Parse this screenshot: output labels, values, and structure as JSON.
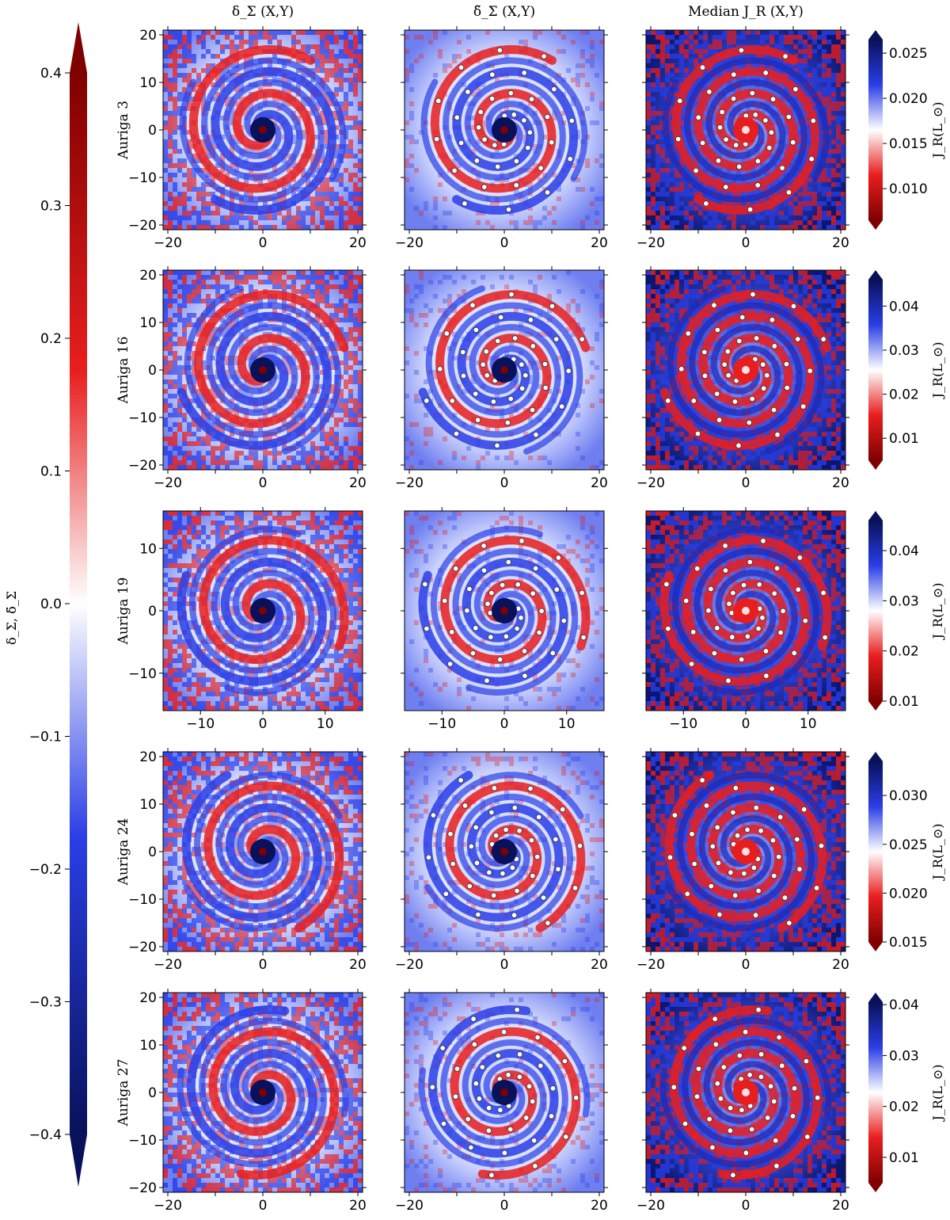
{
  "figure": {
    "column_titles": [
      "δ_Σ (X,Y)",
      "δ̃_Σ (X,Y)",
      "Median J_R (X,Y)"
    ],
    "colormap": {
      "low": "#08115a",
      "mid": "#ffffff",
      "high": "#800000",
      "blue": "#2a3ee6",
      "red": "#e81e1e"
    },
    "main_colorbar": {
      "label": "δ_Σ, δ̃_Σ",
      "min": -0.4,
      "max": 0.4,
      "ticks": [
        "0.4",
        "0.3",
        "0.2",
        "0.1",
        "0.0",
        "−0.1",
        "−0.2",
        "−0.3",
        "−0.4"
      ],
      "extend": "both"
    },
    "jr_colorbar_label": "J_R(L_⊙)"
  },
  "chart_data": [
    {
      "type": "heatmap",
      "row": "Auriga 3",
      "panels": [
        {
          "title": "δ_Σ (X,Y)",
          "xlim": [
            -21,
            21
          ],
          "ylim": [
            -21,
            21
          ],
          "xticks": [
            "−20",
            "0",
            "20"
          ],
          "yticks": [
            "−20",
            "−10",
            "0",
            "10",
            "20"
          ],
          "arms": 2,
          "cmin": -0.4,
          "cmax": 0.4
        },
        {
          "title": "δ̃_Σ (X,Y)",
          "xlim": [
            -21,
            21
          ],
          "ylim": [
            -21,
            21
          ],
          "xticks": [
            "−20",
            "0",
            "20"
          ],
          "yticks": [],
          "arms": 2,
          "cmin": -0.4,
          "cmax": 0.4,
          "markers": "open circles along spiral arms"
        },
        {
          "title": "Median J_R (X,Y)",
          "xlim": [
            -21,
            21
          ],
          "ylim": [
            -21,
            21
          ],
          "xticks": [
            "−20",
            "0",
            "20"
          ],
          "yticks": [],
          "arms": 2,
          "colorbar": {
            "min": 0.0065,
            "max": 0.0265,
            "ticks": [
              "0.010",
              "0.015",
              "0.020",
              "0.025"
            ]
          }
        }
      ]
    },
    {
      "type": "heatmap",
      "row": "Auriga 16",
      "panels": [
        {
          "title": "δ_Σ (X,Y)",
          "xlim": [
            -21,
            21
          ],
          "ylim": [
            -21,
            21
          ],
          "xticks": [
            "−20",
            "0",
            "20"
          ],
          "yticks": [
            "−20",
            "−10",
            "0",
            "10",
            "20"
          ],
          "arms": 2,
          "cmin": -0.4,
          "cmax": 0.4
        },
        {
          "title": "δ̃_Σ (X,Y)",
          "xlim": [
            -21,
            21
          ],
          "ylim": [
            -21,
            21
          ],
          "xticks": [
            "−20",
            "0",
            "20"
          ],
          "yticks": [],
          "arms": 2,
          "cmin": -0.4,
          "cmax": 0.4
        },
        {
          "title": "Median J_R (X,Y)",
          "xlim": [
            -21,
            21
          ],
          "ylim": [
            -21,
            21
          ],
          "xticks": [
            "−20",
            "0",
            "20"
          ],
          "yticks": [],
          "arms": 2,
          "colorbar": {
            "min": 0.005,
            "max": 0.046,
            "ticks": [
              "0.01",
              "0.02",
              "0.03",
              "0.04"
            ]
          }
        }
      ]
    },
    {
      "type": "heatmap",
      "row": "Auriga 19",
      "panels": [
        {
          "title": "δ_Σ (X,Y)",
          "xlim": [
            -16,
            16
          ],
          "ylim": [
            -16,
            16
          ],
          "xticks": [
            "−10",
            "0",
            "10"
          ],
          "yticks": [
            "−10",
            "0",
            "10"
          ],
          "arms": 2,
          "cmin": -0.4,
          "cmax": 0.4
        },
        {
          "title": "δ̃_Σ (X,Y)",
          "xlim": [
            -16,
            16
          ],
          "ylim": [
            -16,
            16
          ],
          "xticks": [
            "−10",
            "0",
            "10"
          ],
          "yticks": [],
          "arms": 2,
          "cmin": -0.4,
          "cmax": 0.4
        },
        {
          "title": "Median J_R (X,Y)",
          "xlim": [
            -16,
            16
          ],
          "ylim": [
            -16,
            16
          ],
          "xticks": [
            "−10",
            "0",
            "10"
          ],
          "yticks": [],
          "arms": 2,
          "colorbar": {
            "min": 0.01,
            "max": 0.046,
            "ticks": [
              "0.01",
              "0.02",
              "0.03",
              "0.04"
            ]
          }
        }
      ]
    },
    {
      "type": "heatmap",
      "row": "Auriga 24",
      "panels": [
        {
          "title": "δ_Σ (X,Y)",
          "xlim": [
            -21,
            21
          ],
          "ylim": [
            -21,
            21
          ],
          "xticks": [
            "−20",
            "0",
            "20"
          ],
          "yticks": [
            "−20",
            "−10",
            "0",
            "10",
            "20"
          ],
          "arms": 2,
          "cmin": -0.4,
          "cmax": 0.4
        },
        {
          "title": "δ̃_Σ (X,Y)",
          "xlim": [
            -21,
            21
          ],
          "ylim": [
            -21,
            21
          ],
          "xticks": [
            "−20",
            "0",
            "20"
          ],
          "yticks": [],
          "arms": 2,
          "cmin": -0.4,
          "cmax": 0.4
        },
        {
          "title": "Median J_R (X,Y)",
          "xlim": [
            -21,
            21
          ],
          "ylim": [
            -21,
            21
          ],
          "xticks": [
            "−20",
            "0",
            "20"
          ],
          "yticks": [],
          "arms": 2,
          "colorbar": {
            "min": 0.015,
            "max": 0.0335,
            "ticks": [
              "0.015",
              "0.020",
              "0.025",
              "0.030"
            ]
          }
        }
      ]
    },
    {
      "type": "heatmap",
      "row": "Auriga 27",
      "panels": [
        {
          "title": "δ_Σ (X,Y)",
          "xlim": [
            -21,
            21
          ],
          "ylim": [
            -21,
            21
          ],
          "xticks": [
            "−20",
            "0",
            "20"
          ],
          "yticks": [
            "−20",
            "−10",
            "0",
            "10",
            "20"
          ],
          "arms": 2,
          "cmin": -0.4,
          "cmax": 0.4
        },
        {
          "title": "δ̃_Σ (X,Y)",
          "xlim": [
            -21,
            21
          ],
          "ylim": [
            -21,
            21
          ],
          "xticks": [
            "−20",
            "0",
            "20"
          ],
          "yticks": [],
          "arms": 2,
          "cmin": -0.4,
          "cmax": 0.4
        },
        {
          "title": "Median J_R (X,Y)",
          "xlim": [
            -21,
            21
          ],
          "ylim": [
            -21,
            21
          ],
          "xticks": [
            "−20",
            "0",
            "20"
          ],
          "yticks": [],
          "arms": 2,
          "colorbar": {
            "min": 0.005,
            "max": 0.0405,
            "ticks": [
              "0.01",
              "0.02",
              "0.03",
              "0.04"
            ]
          }
        }
      ]
    }
  ]
}
